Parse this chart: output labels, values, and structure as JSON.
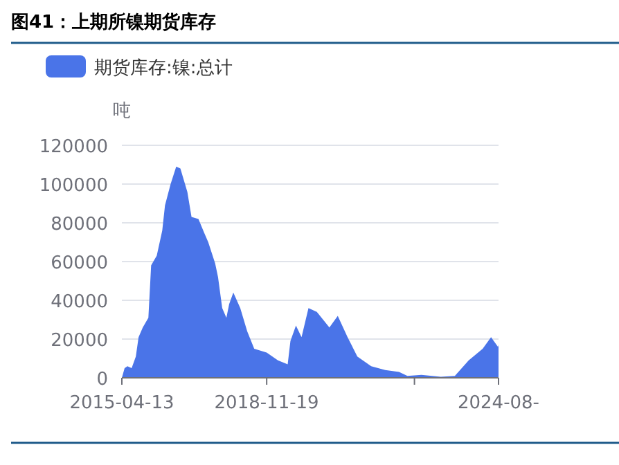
{
  "chart_data": {
    "type": "area",
    "title": "图41：上期所镍期货库存",
    "ylabel": "吨",
    "legend": "top left",
    "grid": "y",
    "x": [
      "2015-04-13",
      "2015-05-08",
      "2015-06-03",
      "2015-07-11",
      "2015-08-18",
      "2015-09-12",
      "2015-10-20",
      "2015-12-10",
      "2016-01-04",
      "2016-02-24",
      "2016-04-14",
      "2016-05-09",
      "2016-06-29",
      "2016-08-19",
      "2016-09-26",
      "2016-11-28",
      "2017-01-05",
      "2017-03-09",
      "2017-04-29",
      "2017-06-06",
      "2017-08-08",
      "2017-09-03",
      "2017-10-11",
      "2017-11-18",
      "2017-12-13",
      "2018-01-20",
      "2018-03-24",
      "2018-05-26",
      "2018-07-29",
      "2018-11-19",
      "2019-03-01",
      "2019-05-29",
      "2019-06-23",
      "2019-08-12",
      "2019-10-02",
      "2019-12-04",
      "2020-02-18",
      "2020-06-11",
      "2020-08-26",
      "2020-11-23",
      "2021-02-20",
      "2021-06-26",
      "2021-10-31",
      "2022-03-06",
      "2022-05-21",
      "2022-09-25",
      "2023-03-21",
      "2023-07-26",
      "2023-11-29",
      "2024-04-04",
      "2024-06-19",
      "2024-08-21",
      "2024-08-26"
    ],
    "series": [
      {
        "name": "期货库存:镍:总计",
        "color": "#4a74e8",
        "values": [
          0,
          5000,
          6000,
          5000,
          11000,
          21000,
          26000,
          31000,
          58000,
          63000,
          76000,
          89000,
          100000,
          109000,
          108000,
          96000,
          83000,
          82000,
          75000,
          70000,
          59000,
          52000,
          36000,
          31000,
          38000,
          44000,
          36000,
          24000,
          15000,
          13000,
          9000,
          7000,
          19000,
          27000,
          21000,
          36000,
          34000,
          26000,
          32000,
          21000,
          11000,
          6000,
          4000,
          3000,
          1000,
          1500,
          500,
          1000,
          9000,
          15000,
          21000,
          16000,
          17000
        ]
      }
    ],
    "xlim": [
      "2015-04-13",
      "2024-08-26"
    ],
    "xticks": [
      {
        "value": "2015-04-13",
        "label": "2015-04-13"
      },
      {
        "value": "2018-11-19",
        "label": "2018-11-19"
      },
      {
        "value": "2022-07-24",
        "label": null
      },
      {
        "value": "2024-08-26",
        "label": "2024-08-"
      }
    ],
    "ylim": [
      0,
      120000
    ],
    "yticks": [
      0,
      20000,
      40000,
      60000,
      80000,
      100000,
      120000
    ]
  }
}
